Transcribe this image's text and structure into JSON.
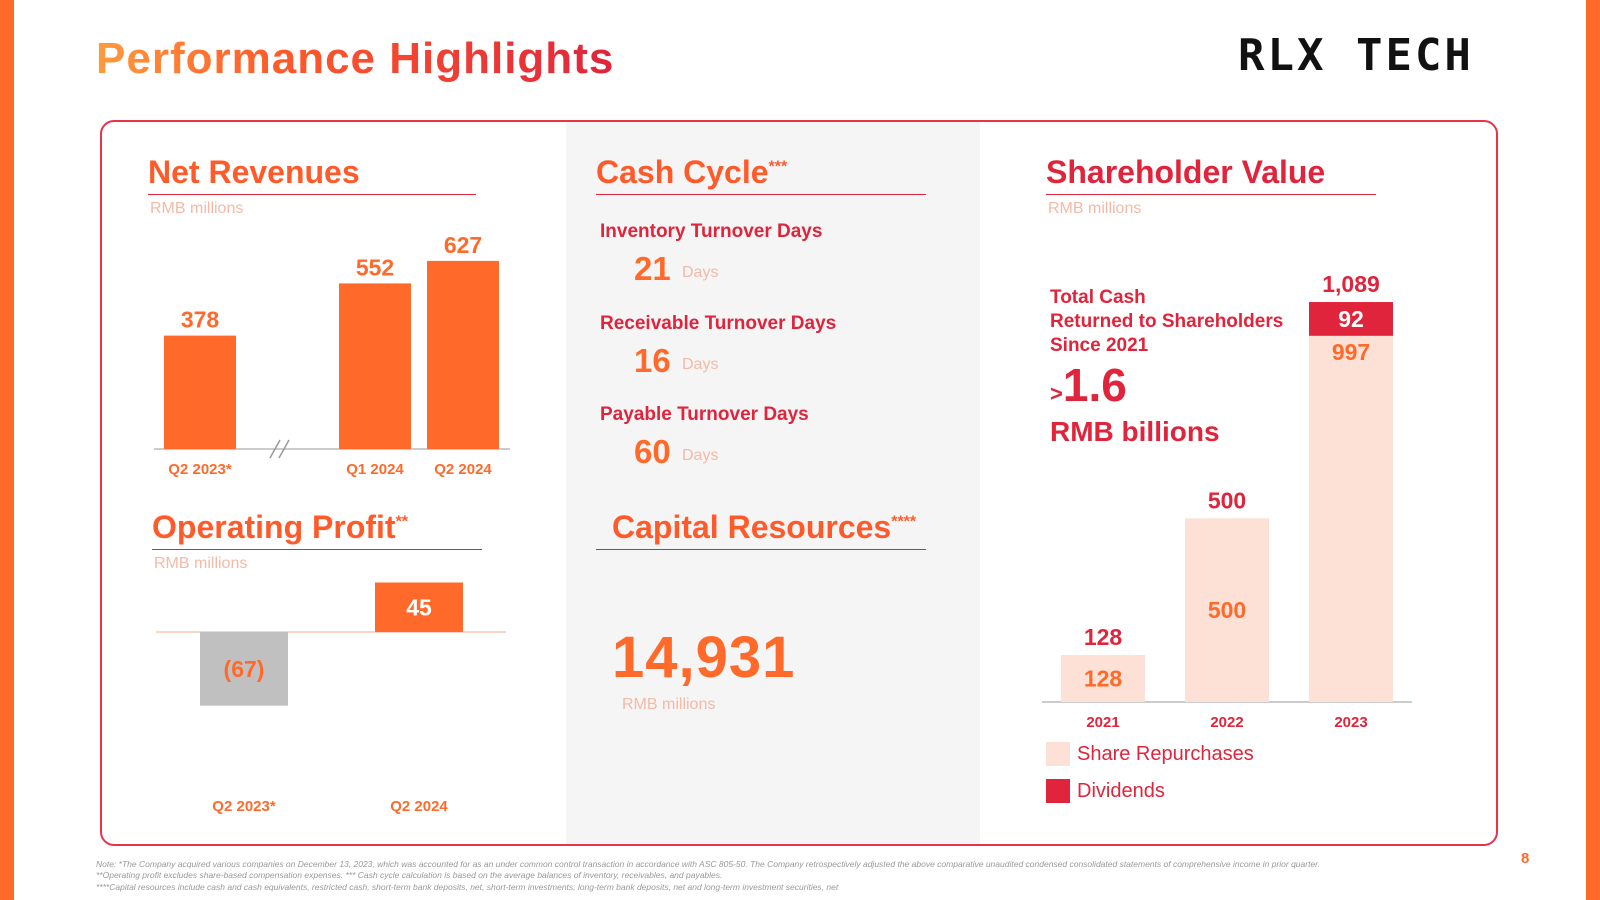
{
  "page": {
    "title": "Performance Highlights",
    "logo_text": "RLX TECH",
    "page_number": "8"
  },
  "net_revenues": {
    "title": "Net Revenues",
    "unit": "RMB millions"
  },
  "operating_profit": {
    "title": "Operating Profit",
    "title_sup": "**",
    "unit": "RMB millions"
  },
  "cash_cycle": {
    "title": "Cash Cycle",
    "title_sup": "***",
    "metrics": [
      {
        "label": "Inventory Turnover Days",
        "value": "21",
        "unit": "Days"
      },
      {
        "label": "Receivable Turnover Days",
        "value": "16",
        "unit": "Days"
      },
      {
        "label": "Payable Turnover Days",
        "value": "60",
        "unit": "Days"
      }
    ]
  },
  "capital_resources": {
    "title": "Capital Resources",
    "title_sup": "****",
    "value": "14,931",
    "unit": "RMB millions"
  },
  "shareholder_value": {
    "title": "Shareholder Value",
    "unit": "RMB millions",
    "callout_line1": "Total Cash",
    "callout_line2": "Returned to Shareholders",
    "callout_line3": "Since 2021",
    "callout_prefix": ">",
    "callout_value": "1.6",
    "callout_unit": "RMB billions",
    "legend": {
      "repurchases": "Share Repurchases",
      "dividends": "Dividends"
    }
  },
  "colors": {
    "orange": "#ff6a2b",
    "red": "#e0243c",
    "peach": "#fde0d6",
    "gray": "#c0c0c0"
  },
  "chart_data": [
    {
      "id": "net_revenues",
      "type": "bar",
      "title": "Net Revenues",
      "ylabel": "RMB millions",
      "categories": [
        "Q2 2023*",
        "Q1 2024",
        "Q2 2024"
      ],
      "values": [
        378,
        552,
        627
      ],
      "labels": [
        "378",
        "552",
        "627"
      ],
      "ylim": [
        0,
        700
      ],
      "axis_break": true
    },
    {
      "id": "operating_profit",
      "type": "bar",
      "title": "Operating Profit",
      "ylabel": "RMB millions",
      "categories": [
        "Q2 2023*",
        "Q2 2024"
      ],
      "values": [
        -67,
        45
      ],
      "labels": [
        "(67)",
        "45"
      ],
      "ylim": [
        -100,
        70
      ]
    },
    {
      "id": "shareholder_value",
      "type": "bar",
      "stacked": true,
      "title": "Shareholder Value",
      "ylabel": "RMB millions",
      "categories": [
        "2021",
        "2022",
        "2023"
      ],
      "totals": [
        "128",
        "500",
        "1,089"
      ],
      "series": [
        {
          "name": "Share Repurchases",
          "values": [
            128,
            500,
            997
          ],
          "labels": [
            "128",
            "500",
            "997"
          ]
        },
        {
          "name": "Dividends",
          "values": [
            0,
            0,
            92
          ],
          "labels": [
            "",
            "",
            "92"
          ]
        }
      ],
      "ylim": [
        0,
        1100
      ]
    }
  ],
  "footnotes": {
    "line1": "Note: *The Company acquired various companies on December 13, 2023, which was accounted for as an under common control transaction in accordance with ASC 805-50. The Company retrospectively adjusted the above comparative unaudited condensed consolidated statements of comprehensive income in prior quarter.",
    "line2": "**Operating profit excludes share-based compensation expenses. *** Cash cycle calculation is based on the average balances of inventory, receivables, and payables.",
    "line3": "****Capital resources include cash and cash equivalents, restricted cash, short-term bank deposits, net, short-term investments, long-term bank deposits, net and long-term investment securities, net"
  }
}
